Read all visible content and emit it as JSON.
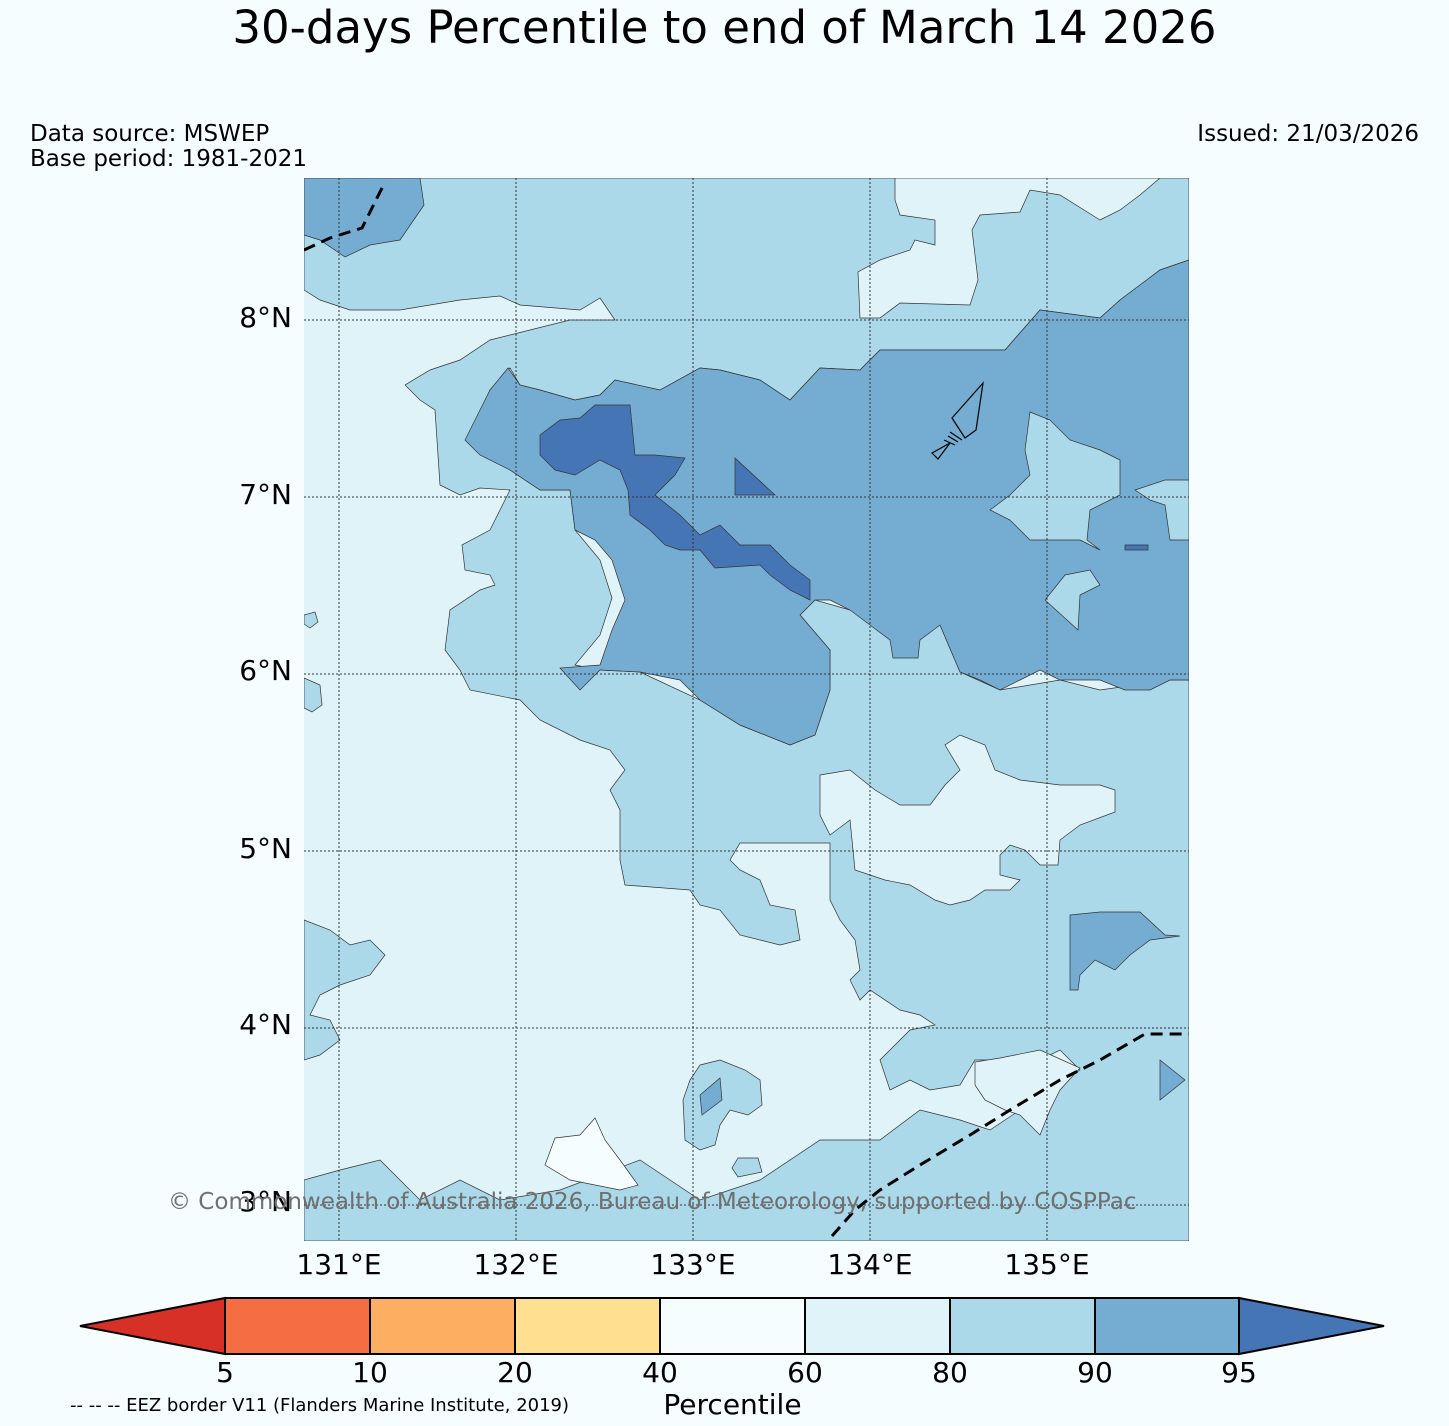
{
  "header": {
    "title": "30-days Percentile to end of March 14 2026",
    "data_source": "Data source: MSWEP",
    "base_period": "Base period: 1981-2021",
    "issued": "Issued: 21/03/2026"
  },
  "map": {
    "lat_labels": [
      "8°N",
      "7°N",
      "6°N",
      "5°N",
      "4°N",
      "3°N"
    ],
    "lon_labels": [
      "131°E",
      "132°E",
      "133°E",
      "134°E",
      "135°E"
    ],
    "copyright": "© Commonwealth of Australia 2026, Bureau of Meteorology, supported by COSPPac",
    "gridlines": true,
    "eez_border": "dashed"
  },
  "legend": {
    "title": "Percentile",
    "tick_labels": [
      "5",
      "10",
      "20",
      "40",
      "60",
      "80",
      "90",
      "95"
    ],
    "bins": [
      {
        "range": "<5",
        "color": "#d73027"
      },
      {
        "range": "5-10",
        "color": "#f46d43"
      },
      {
        "range": "10-20",
        "color": "#fdae61"
      },
      {
        "range": "20-40",
        "color": "#fee090"
      },
      {
        "range": "40-60",
        "color": "#f6fdfe"
      },
      {
        "range": "60-80",
        "color": "#e0f3f8"
      },
      {
        "range": "80-90",
        "color": "#abd9e9"
      },
      {
        "range": "90-95",
        "color": "#74add1"
      },
      {
        "range": ">95",
        "color": "#4575b4"
      }
    ],
    "eez_note": "-- -- -- EEZ border V11 (Flanders Marine Institute, 2019)"
  }
}
